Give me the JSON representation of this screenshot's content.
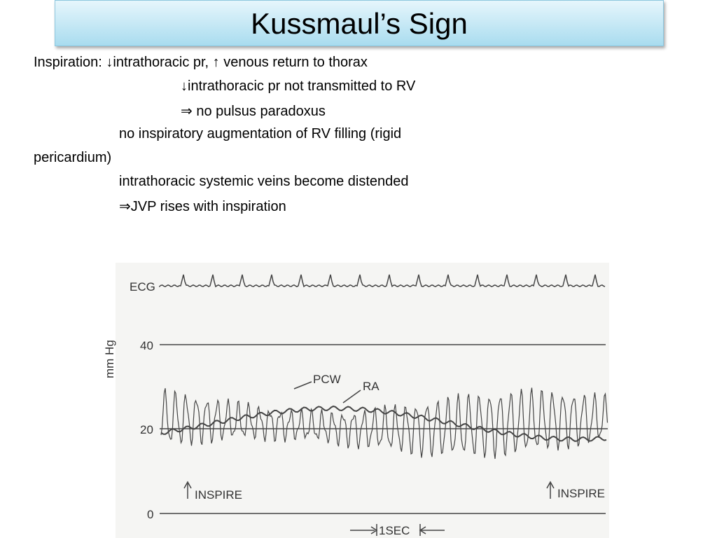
{
  "header": {
    "title": "Kussmaul’s Sign"
  },
  "body": {
    "lines": [
      "Inspiration: ↓intrathoracic pr,  ↑ venous return to thorax",
      "↓intrathoracic pr not transmitted  to RV",
      "⇒ no pulsus paradoxus",
      "no inspiratory augmentation of RV filling (rigid",
      "pericardium)",
      "intrathoracic systemic veins become distended",
      "⇒JVP rises with inspiration"
    ]
  },
  "figure": {
    "ecg_label": "ECG",
    "y_axis_label": "mm Hg",
    "axis_labels": [
      "40",
      "20",
      "0"
    ],
    "trace_labels": [
      "PCW",
      "RA"
    ],
    "inspire_labels": [
      "INSPIRE",
      "INSPIRE"
    ],
    "time_label": "1SEC"
  }
}
